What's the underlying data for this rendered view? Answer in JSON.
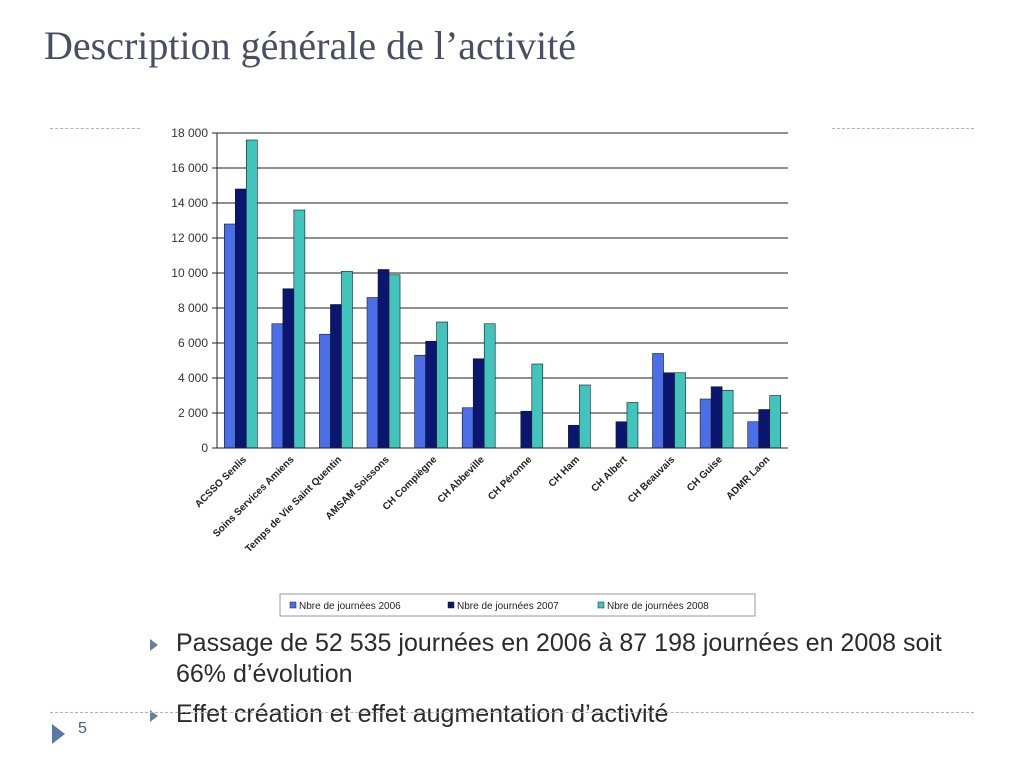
{
  "slide": {
    "title": "Description générale de l’activité",
    "page_number": "5",
    "bullets": [
      "Passage de 52 535 journées en 2006 à 87 198 journées en 2008 soit 66% d’évolution",
      "Effet création et effet augmentation d’activité"
    ]
  },
  "colors": {
    "title": "#4a4e63",
    "series_2006": "#4a6fe8",
    "series_2007": "#0a1670",
    "series_2008": "#40c4bc",
    "accent": "#5c78a6"
  },
  "chart_data": {
    "type": "bar",
    "categories": [
      "ACSSO Senlis",
      "Soins Services Amiens",
      "Temps de Vie Saint Quentin",
      "AMSAM Soissons",
      "CH Compiègne",
      "CH Abbeville",
      "CH Péronne",
      "CH Ham",
      "CH Albert",
      "CH Beauvais",
      "CH Guise",
      "ADMR Laon"
    ],
    "series": [
      {
        "name": "Nbre de journées 2006",
        "color": "#4a6fe8",
        "values": [
          12800,
          7100,
          6500,
          8600,
          5300,
          2300,
          0,
          0,
          0,
          5400,
          2800,
          1500
        ]
      },
      {
        "name": "Nbre de journées 2007",
        "color": "#0a1670",
        "values": [
          14800,
          9100,
          8200,
          10200,
          6100,
          5100,
          2100,
          1300,
          1500,
          4300,
          3500,
          2200
        ]
      },
      {
        "name": "Nbre de journées 2008",
        "color": "#40c4bc",
        "values": [
          17600,
          13600,
          10100,
          9900,
          7200,
          7100,
          4800,
          3600,
          2600,
          4300,
          3300,
          3000
        ]
      }
    ],
    "yticks": [
      "0",
      "2 000",
      "4 000",
      "6 000",
      "8 000",
      "10 000",
      "12 000",
      "14 000",
      "16 000",
      "18 000"
    ],
    "ylim": [
      0,
      18000
    ],
    "grid": true,
    "legend_position": "bottom"
  }
}
